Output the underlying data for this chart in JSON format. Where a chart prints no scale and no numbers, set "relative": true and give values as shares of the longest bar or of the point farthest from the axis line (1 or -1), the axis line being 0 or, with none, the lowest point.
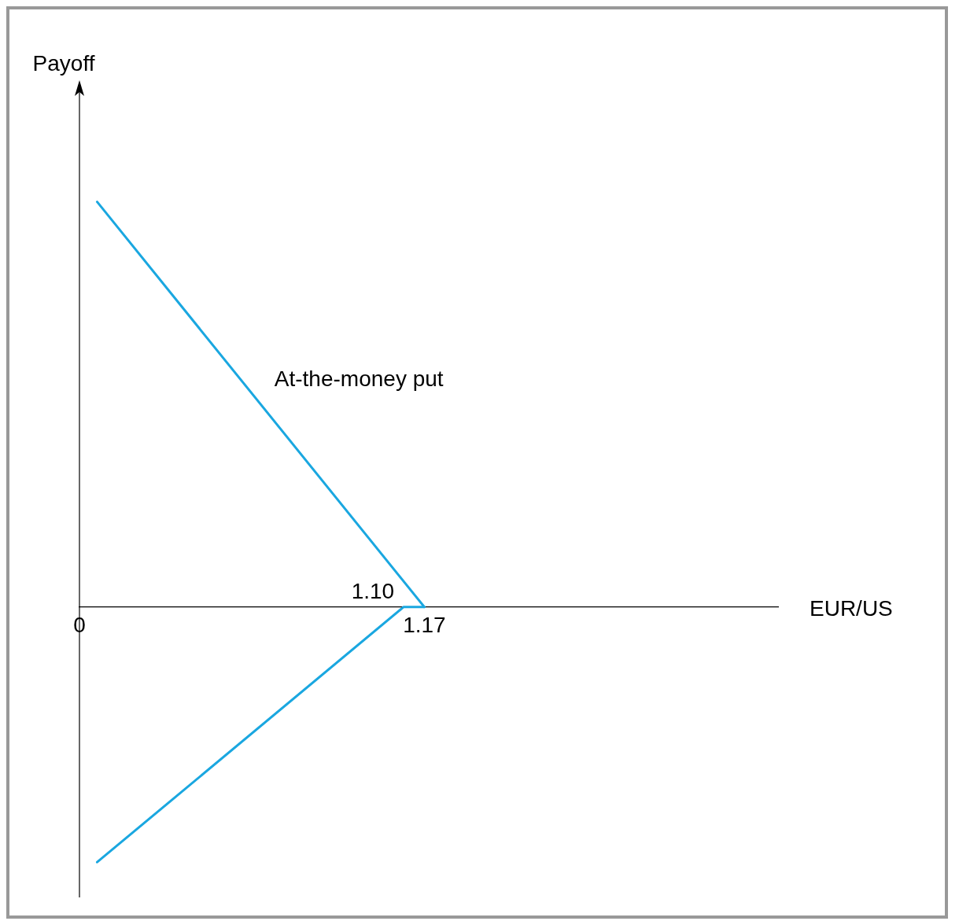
{
  "chart_data": {
    "type": "line",
    "xlabel": "EUR/US",
    "relative": true,
    "series": [
      {
        "color": "#1aa7e0",
        "x": [
          0.06,
          1.17
        ],
        "values": [
          1,
          0
        ]
      },
      {
        "color": "#1aa7e0",
        "x": [
          0.06,
          1.1,
          1.17
        ],
        "values": [
          -0.63,
          0,
          0
        ]
      }
    ],
    "xlim": [
      0,
      2.37
    ],
    "xticks": [
      0,
      1.17
    ],
    "tick_labels": "x",
    "grid": false,
    "legend": false,
    "marker": "none",
    "line_style": "solid",
    "annotations": [
      "Payoff",
      "At-the-money put",
      {
        "text": "1.10",
        "x": 1.1,
        "y": 0
      }
    ]
  }
}
